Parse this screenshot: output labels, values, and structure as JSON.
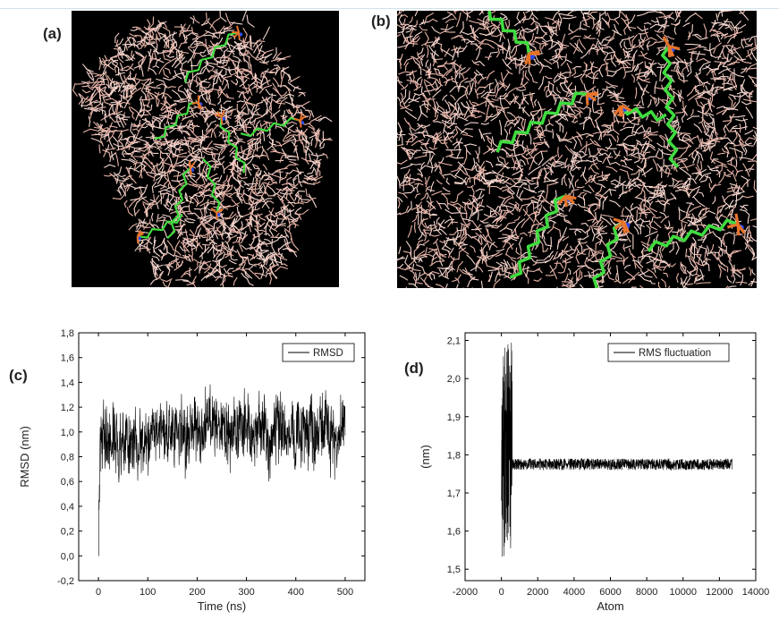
{
  "panels": {
    "a": "(a)",
    "b": "(b)",
    "c": "(c)",
    "d": "(d)"
  },
  "colors": {
    "solvent": "#e8b4a8",
    "chain": "#3fdc3f",
    "phosphate": "#e8742a",
    "nitrogen": "#2a4cf0",
    "background": "#000000",
    "line": "#000000"
  },
  "chart_data": [
    {
      "id": "c",
      "type": "line",
      "title": "",
      "xlabel": "Time (ns)",
      "ylabel": "RMSD (nm)",
      "xlim": [
        -40,
        540
      ],
      "ylim": [
        -0.2,
        1.8
      ],
      "xticks": [
        0,
        100,
        200,
        300,
        400,
        500
      ],
      "yticks": [
        "-0,2",
        "0,0",
        "0,2",
        "0,4",
        "0,6",
        "0,8",
        "1,0",
        "1,2",
        "1,4",
        "1,6",
        "1,8"
      ],
      "xtick_labels": [
        "0",
        "100",
        "200",
        "300",
        "400",
        "500"
      ],
      "legend": "top-right",
      "series": [
        {
          "name": "RMSD",
          "x": [
            0,
            1,
            2,
            4,
            6,
            8,
            10,
            15,
            20,
            30,
            40,
            50,
            60,
            70,
            80,
            90,
            100,
            110,
            120,
            130,
            140,
            150,
            160,
            170,
            180,
            190,
            200,
            210,
            220,
            230,
            240,
            250,
            260,
            270,
            280,
            290,
            300,
            310,
            320,
            330,
            340,
            350,
            360,
            370,
            380,
            390,
            400,
            410,
            420,
            430,
            440,
            450,
            460,
            470,
            480,
            490,
            500
          ],
          "y": [
            0.0,
            0.45,
            0.7,
            0.85,
            0.9,
            0.95,
            1.0,
            0.95,
            0.9,
            0.92,
            0.85,
            0.88,
            0.9,
            0.95,
            0.85,
            0.9,
            0.95,
            0.98,
            1.0,
            0.95,
            1.0,
            0.95,
            1.05,
            1.0,
            0.95,
            1.05,
            1.02,
            1.0,
            1.05,
            1.1,
            1.0,
            0.98,
            1.02,
            1.0,
            1.05,
            1.0,
            1.02,
            0.98,
            1.0,
            1.05,
            1.0,
            0.95,
            1.05,
            1.0,
            0.98,
            1.02,
            1.0,
            0.98,
            1.0,
            1.02,
            0.95,
            1.0,
            1.05,
            0.95,
            1.0,
            1.0,
            1.0
          ],
          "noise_amplitude": 0.25,
          "y_min_observed": 0.0,
          "y_max_observed": 1.62
        }
      ]
    },
    {
      "id": "d",
      "type": "line",
      "title": "",
      "xlabel": "Atom",
      "ylabel": "(nm)",
      "xlim": [
        -2000,
        14000
      ],
      "ylim": [
        1.47,
        2.12
      ],
      "xticks": [
        -2000,
        0,
        2000,
        4000,
        6000,
        8000,
        10000,
        12000,
        14000
      ],
      "xtick_labels": [
        "-2000",
        "0",
        "2000",
        "4000",
        "6000",
        "8000",
        "10000",
        "12000",
        "14000"
      ],
      "yticks": [
        "1,5",
        "1,6",
        "1,7",
        "1,8",
        "1,9",
        "2,0",
        "2,1"
      ],
      "legend": "top-right",
      "series": [
        {
          "name": "RMS fluctuation",
          "x": [
            0,
            100,
            200,
            300,
            400,
            500,
            600,
            700,
            800,
            2000,
            4000,
            6000,
            8000,
            10000,
            12000,
            12700
          ],
          "y": [
            1.6,
            1.95,
            1.7,
            2.05,
            1.55,
            2.1,
            1.78,
            1.77,
            1.78,
            1.77,
            1.78,
            1.77,
            1.78,
            1.77,
            1.78,
            1.77
          ],
          "noise_amplitude_tail": 0.015,
          "spike_region": [
            0,
            700
          ],
          "spike_min": 1.53,
          "spike_max": 2.1,
          "plateau": 1.775
        }
      ]
    }
  ]
}
